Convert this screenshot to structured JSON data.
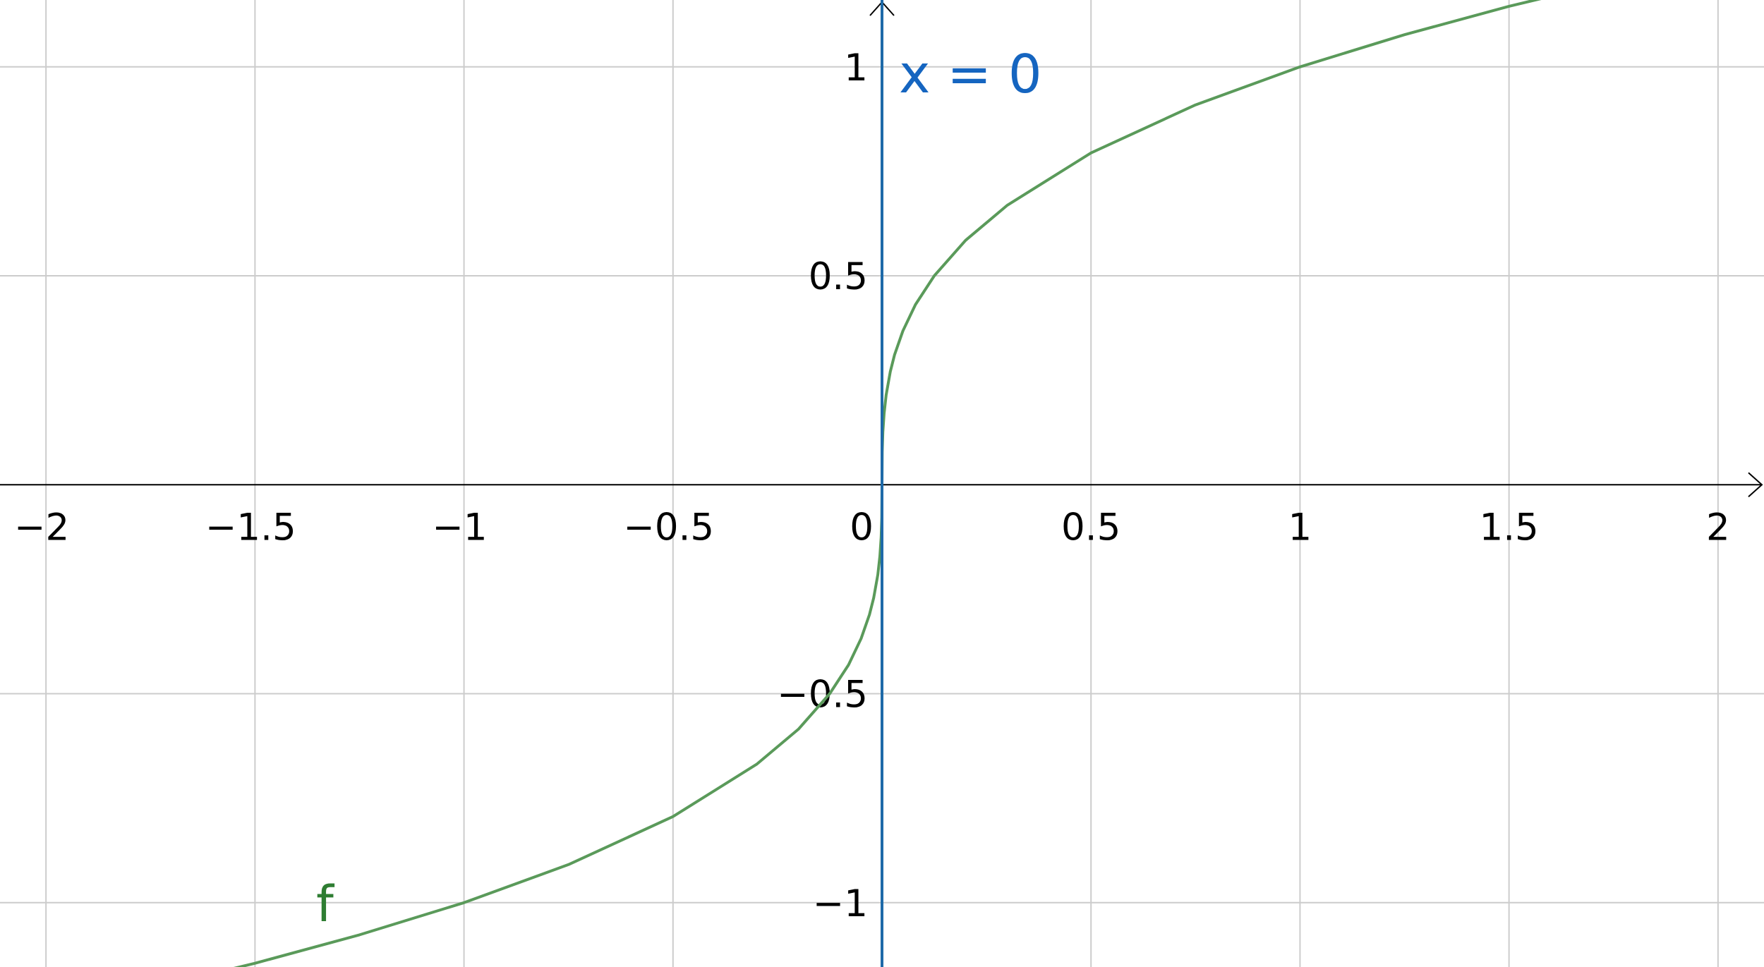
{
  "chart_data": {
    "type": "line",
    "title": "",
    "xlabel": "",
    "ylabel": "",
    "xlim": [
      -2.11,
      2.11
    ],
    "ylim": [
      -1.154,
      1.16
    ],
    "grid": true,
    "x_ticks": [
      {
        "value": -2,
        "label": "−2"
      },
      {
        "value": -1.5,
        "label": "−1.5"
      },
      {
        "value": -1,
        "label": "−1"
      },
      {
        "value": -0.5,
        "label": "−0.5"
      },
      {
        "value": 0,
        "label": "0"
      },
      {
        "value": 0.5,
        "label": "0.5"
      },
      {
        "value": 1,
        "label": "1"
      },
      {
        "value": 1.5,
        "label": "1.5"
      },
      {
        "value": 2,
        "label": "2"
      }
    ],
    "y_ticks": [
      {
        "value": -1,
        "label": "−1"
      },
      {
        "value": -0.5,
        "label": "−0.5"
      },
      {
        "value": 0.5,
        "label": "0.5"
      },
      {
        "value": 1,
        "label": "1"
      }
    ],
    "series": [
      {
        "name": "f",
        "color": "#5a9a5a",
        "label_color": "#2e7d32",
        "label_at": [
          -1.33,
          -1.0
        ],
        "x": [
          -1.57,
          -1.5,
          -1.25,
          -1.0,
          -0.75,
          -0.5,
          -0.3,
          -0.2,
          -0.125,
          -0.08,
          -0.05,
          -0.03,
          -0.02,
          -0.01,
          -0.005,
          -0.002,
          -0.0005,
          0,
          0.0005,
          0.002,
          0.005,
          0.01,
          0.02,
          0.03,
          0.05,
          0.08,
          0.125,
          0.2,
          0.3,
          0.5,
          0.75,
          1.0,
          1.25,
          1.5,
          1.58
        ],
        "y": [
          -1.162,
          -1.145,
          -1.077,
          -1.0,
          -0.909,
          -0.794,
          -0.669,
          -0.585,
          -0.5,
          -0.431,
          -0.368,
          -0.311,
          -0.271,
          -0.215,
          -0.171,
          -0.126,
          -0.079,
          0,
          0.079,
          0.126,
          0.171,
          0.215,
          0.271,
          0.311,
          0.368,
          0.431,
          0.5,
          0.585,
          0.669,
          0.794,
          0.909,
          1.0,
          1.077,
          1.145,
          1.164
        ]
      }
    ],
    "asymptote": {
      "x": 0,
      "label": "x = 0",
      "color": "#1565c0",
      "line_color": "#1e6aa8"
    },
    "colors": {
      "grid": "#cccccc",
      "axis": "#000000",
      "background": "#ffffff"
    }
  }
}
